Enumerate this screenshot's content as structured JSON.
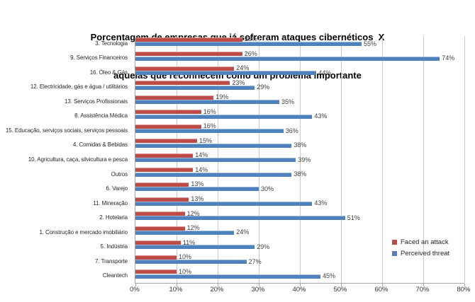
{
  "title": {
    "line1": "Porcentagem de empresas que já sofreram ataques cibernéticos  X",
    "line2": "aquelas que reconhecem como um problema importante"
  },
  "chart_data": {
    "type": "bar",
    "orientation": "horizontal",
    "title": "Porcentagem de empresas que já sofreram ataques cibernéticos X aquelas que reconhecem como um problema importante",
    "categories": [
      "3. Tecnologia",
      "9. Serviços Financeiros",
      "16. Óleo & Gás",
      "12. Electricidade, gás e água / utilitários",
      "13. Serviços Profissionais",
      "8. Assistência Médica",
      "15. Educação, serviços sociais, serviços pessoais",
      "4. Comidas & Bebidas",
      "10. Agricultura, caça, silvicultura e pesca",
      "Outros",
      "6. Varejo",
      "11. Mineração",
      "2. Hotelaria",
      "1. Construção e mercado imobiliário",
      "5. Indústria",
      "7. Transporte",
      "Cleantech"
    ],
    "series": [
      {
        "name": "Faced an attack",
        "color": "#BE4B48",
        "values": [
          26,
          26,
          24,
          23,
          19,
          16,
          16,
          15,
          14,
          14,
          13,
          13,
          12,
          12,
          11,
          10,
          10
        ]
      },
      {
        "name": "Perceived threat",
        "color": "#4F81BD",
        "values": [
          55,
          74,
          44,
          29,
          35,
          43,
          36,
          38,
          39,
          38,
          30,
          43,
          51,
          24,
          29,
          27,
          45
        ]
      }
    ],
    "value_suffix": "%",
    "xlim": [
      0,
      80
    ],
    "x_ticks": [
      "0%",
      "10%",
      "20%",
      "30%",
      "40%",
      "50%",
      "60%",
      "70%",
      "80%"
    ],
    "grid": true,
    "legend_position": "right-inside"
  },
  "colors": {
    "red_series": "#BE4B48",
    "blue_series": "#4F81BD",
    "gridline": "#c9c9c9",
    "axis": "#a6a6a6",
    "label_text": "#404040"
  }
}
